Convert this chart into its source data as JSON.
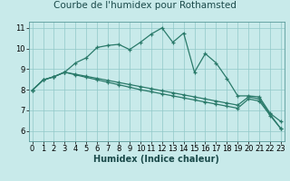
{
  "title": "Courbe de l'humidex pour Rothamsted",
  "xlabel": "Humidex (Indice chaleur)",
  "bg_color": "#c8eaea",
  "grid_color": "#90c8c8",
  "line_color": "#2a7a6a",
  "x_ticks": [
    0,
    1,
    2,
    3,
    4,
    5,
    6,
    7,
    8,
    9,
    10,
    11,
    12,
    13,
    14,
    15,
    16,
    17,
    18,
    19,
    20,
    21,
    22,
    23
  ],
  "ylim": [
    5.5,
    11.3
  ],
  "xlim": [
    -0.3,
    23.3
  ],
  "series1_x": [
    0,
    1,
    2,
    3,
    4,
    5,
    6,
    7,
    8,
    9,
    10,
    11,
    12,
    13,
    14,
    15,
    16,
    17,
    18,
    19,
    20,
    21,
    22,
    23
  ],
  "series1_y": [
    7.97,
    8.47,
    8.63,
    8.85,
    9.3,
    9.55,
    10.05,
    10.15,
    10.2,
    9.95,
    10.3,
    10.7,
    11.0,
    10.3,
    10.75,
    8.85,
    9.75,
    9.3,
    8.55,
    7.7,
    7.7,
    7.65,
    6.85,
    6.45
  ],
  "series2_x": [
    0,
    1,
    2,
    3,
    4,
    5,
    6,
    7,
    8,
    9,
    10,
    11,
    12,
    13,
    14,
    15,
    16,
    17,
    18,
    19,
    20,
    21,
    22,
    23
  ],
  "series2_y": [
    7.97,
    8.47,
    8.63,
    8.85,
    8.72,
    8.6,
    8.48,
    8.36,
    8.24,
    8.12,
    8.0,
    7.9,
    7.8,
    7.7,
    7.6,
    7.5,
    7.4,
    7.3,
    7.2,
    7.1,
    7.55,
    7.45,
    6.75,
    6.1
  ],
  "series3_x": [
    0,
    1,
    2,
    3,
    4,
    5,
    6,
    7,
    8,
    9,
    10,
    11,
    12,
    13,
    14,
    15,
    16,
    17,
    18,
    19,
    20,
    21,
    22,
    23
  ],
  "series3_y": [
    7.97,
    8.47,
    8.63,
    8.85,
    8.75,
    8.65,
    8.55,
    8.45,
    8.35,
    8.25,
    8.15,
    8.05,
    7.95,
    7.85,
    7.75,
    7.65,
    7.55,
    7.45,
    7.35,
    7.25,
    7.65,
    7.55,
    6.8,
    6.1
  ],
  "title_fontsize": 7.5,
  "label_fontsize": 7,
  "tick_fontsize": 6
}
